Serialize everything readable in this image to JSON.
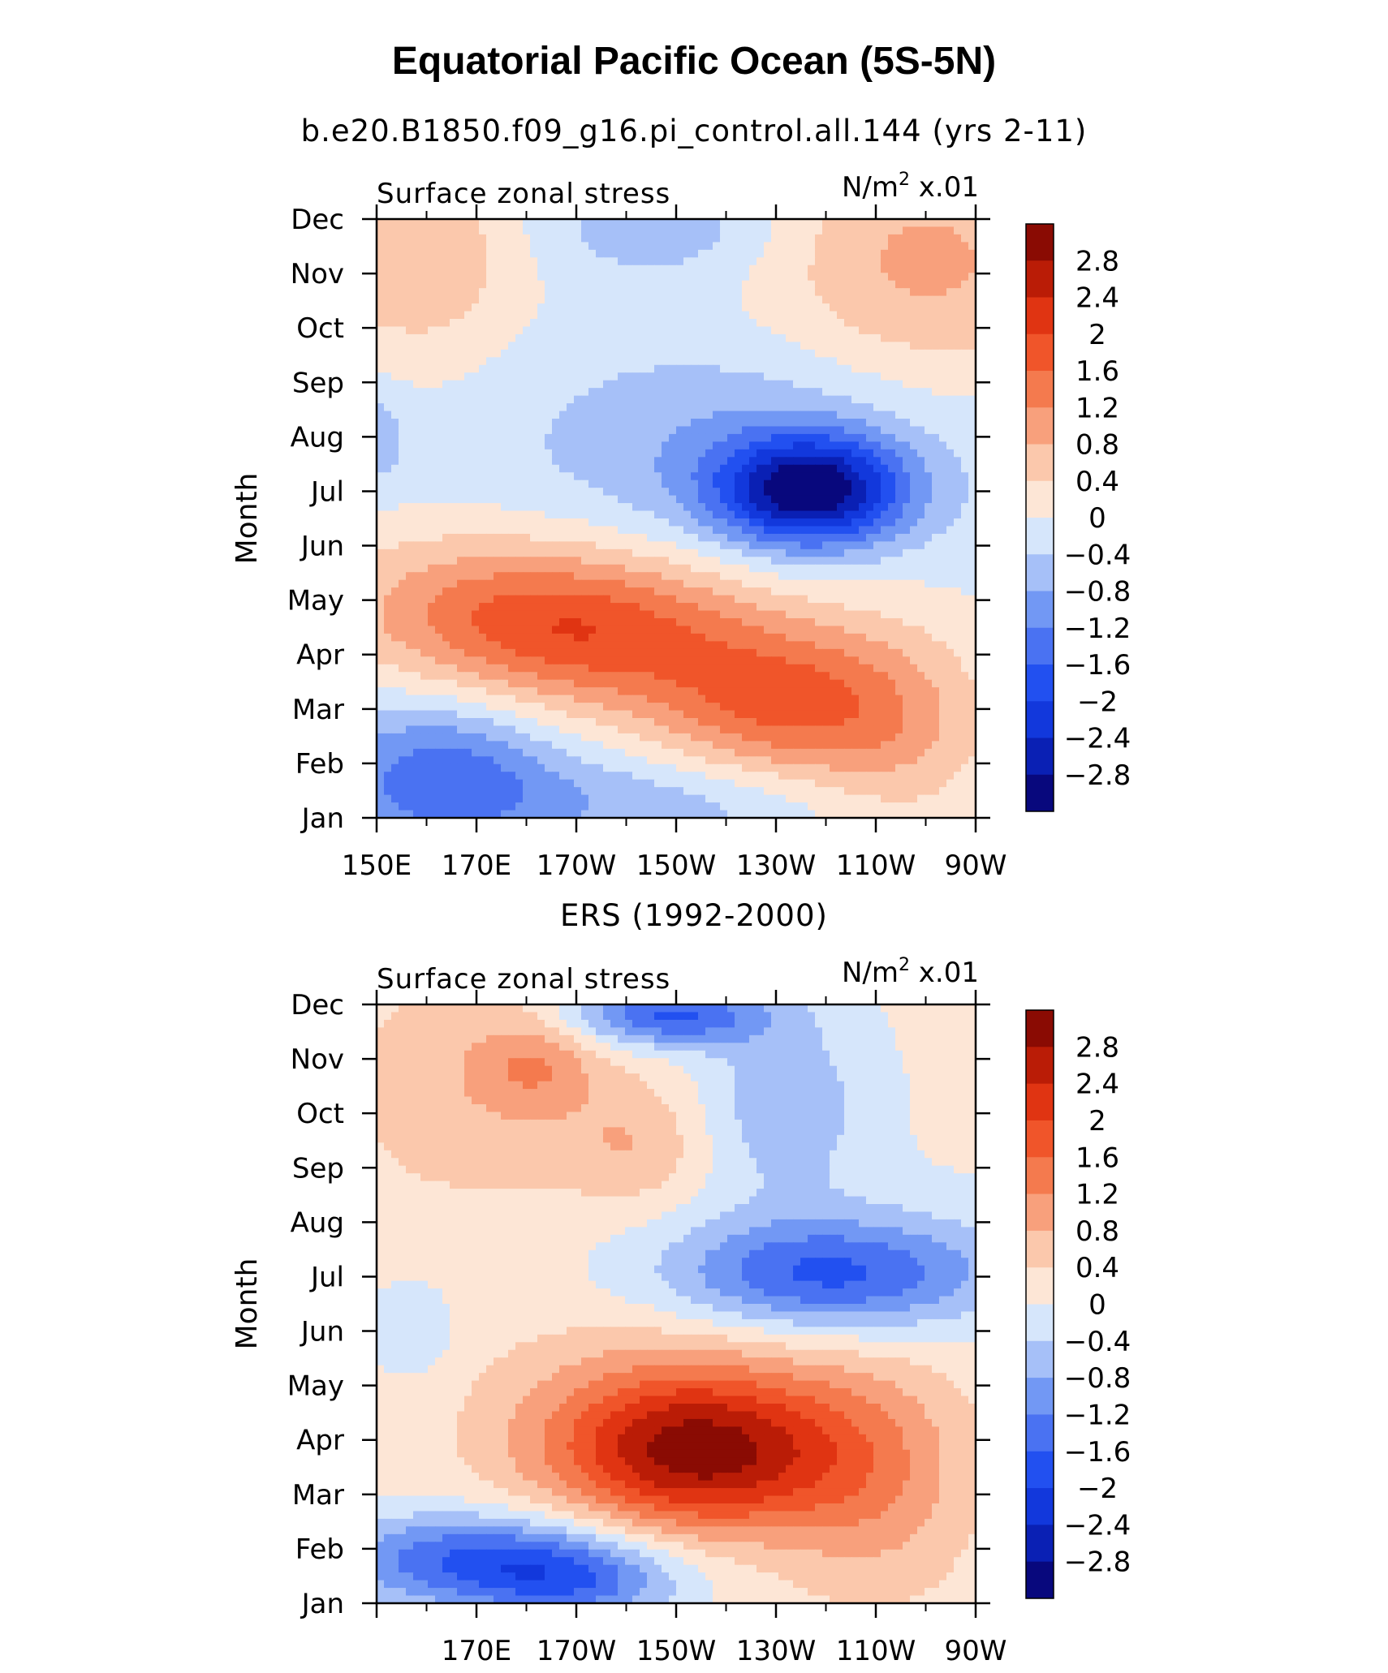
{
  "figure": {
    "title": "Equatorial Pacific Ocean (5S-5N)"
  },
  "chart_data": [
    {
      "type": "heatmap",
      "title": "b.e20.B1850.f09_g16.pi_control.all.144 (yrs 2-11)",
      "left_string": "Surface zonal stress",
      "units": "N/m",
      "units_sup": "2",
      "units_scale": " x.01",
      "xlabel": "",
      "ylabel": "Month",
      "x_tick_labels": [
        "150E",
        "170E",
        "170W",
        "150W",
        "130W",
        "110W",
        "90W"
      ],
      "x_range": [
        150,
        270
      ],
      "y_tick_labels": [
        "Jan",
        "Feb",
        "Mar",
        "Apr",
        "May",
        "Jun",
        "Jul",
        "Aug",
        "Sep",
        "Oct",
        "Nov",
        "Dec"
      ],
      "y_range": [
        1,
        12
      ],
      "colorbar_labels": [
        "2.8",
        "2.4",
        "2",
        "1.6",
        "1.2",
        "0.8",
        "0.4",
        "0",
        "-0.4",
        "-0.8",
        "-1.2",
        "-1.6",
        "-2",
        "-2.4",
        "-2.8"
      ],
      "blobs": [
        {
          "x": 158,
          "y": 11.3,
          "sx": 14,
          "sy": 1.3,
          "a": 0.9
        },
        {
          "x": 260,
          "y": 11.2,
          "sx": 22,
          "sy": 1.6,
          "a": 1.0
        },
        {
          "x": 207,
          "y": 11.8,
          "sx": 16,
          "sy": 0.6,
          "a": -0.6
        },
        {
          "x": 237,
          "y": 7.0,
          "sx": 13,
          "sy": 0.7,
          "a": -2.8
        },
        {
          "x": 222,
          "y": 7.8,
          "sx": 30,
          "sy": 1.3,
          "a": -0.7
        },
        {
          "x": 150,
          "y": 8.0,
          "sx": 4,
          "sy": 0.6,
          "a": -0.6
        },
        {
          "x": 193,
          "y": 4.4,
          "sx": 24,
          "sy": 1.0,
          "a": 1.8
        },
        {
          "x": 231,
          "y": 3.1,
          "sx": 18,
          "sy": 1.0,
          "a": 1.6
        },
        {
          "x": 165,
          "y": 5.0,
          "sx": 22,
          "sy": 1.0,
          "a": 0.7
        },
        {
          "x": 255,
          "y": 2.5,
          "sx": 14,
          "sy": 1.5,
          "a": 0.7
        },
        {
          "x": 163,
          "y": 1.8,
          "sx": 16,
          "sy": 1.0,
          "a": -1.3
        },
        {
          "x": 205,
          "y": 1.3,
          "sx": 30,
          "sy": 0.6,
          "a": -0.6
        }
      ],
      "base": -0.1
    },
    {
      "type": "heatmap",
      "title": "ERS (1992-2000)",
      "left_string": "Surface zonal stress",
      "units": "N/m",
      "units_sup": "2",
      "units_scale": " x.01",
      "xlabel": "",
      "ylabel": "Month",
      "x_tick_labels": [
        "170E",
        "170W",
        "150W",
        "130W",
        "110W",
        "90W"
      ],
      "x_range": [
        150,
        270
      ],
      "y_tick_labels": [
        "Jan",
        "Feb",
        "Mar",
        "Apr",
        "May",
        "Jun",
        "Jul",
        "Aug",
        "Sep",
        "Oct",
        "Nov",
        "Dec"
      ],
      "y_range": [
        1,
        12
      ],
      "colorbar_labels": [
        "2.8",
        "2.4",
        "2",
        "1.6",
        "1.2",
        "0.8",
        "0.4",
        "0",
        "-0.4",
        "-0.8",
        "-1.2",
        "-1.6",
        "-2",
        "-2.4",
        "-2.8"
      ],
      "blobs": [
        {
          "x": 170,
          "y": 10.5,
          "sx": 20,
          "sy": 1.6,
          "a": 0.6
        },
        {
          "x": 182,
          "y": 10.9,
          "sx": 8,
          "sy": 0.6,
          "a": 0.7
        },
        {
          "x": 202,
          "y": 9.4,
          "sx": 10,
          "sy": 0.8,
          "a": 0.6
        },
        {
          "x": 208,
          "y": 11.8,
          "sx": 14,
          "sy": 0.4,
          "a": -1.8
        },
        {
          "x": 232,
          "y": 10.2,
          "sx": 12,
          "sy": 1.2,
          "a": -0.8
        },
        {
          "x": 240,
          "y": 7.0,
          "sx": 22,
          "sy": 0.7,
          "a": -1.5
        },
        {
          "x": 245,
          "y": 7.3,
          "sx": 30,
          "sy": 1.0,
          "a": -0.4
        },
        {
          "x": 157,
          "y": 6.0,
          "sx": 6,
          "sy": 0.6,
          "a": -0.5
        },
        {
          "x": 215,
          "y": 3.7,
          "sx": 20,
          "sy": 1.0,
          "a": 2.2
        },
        {
          "x": 210,
          "y": 4.4,
          "sx": 26,
          "sy": 1.3,
          "a": 0.9
        },
        {
          "x": 250,
          "y": 3.2,
          "sx": 14,
          "sy": 1.6,
          "a": 0.8
        },
        {
          "x": 172,
          "y": 1.8,
          "sx": 22,
          "sy": 0.6,
          "a": -1.8
        },
        {
          "x": 190,
          "y": 1.3,
          "sx": 14,
          "sy": 0.5,
          "a": -1.0
        }
      ],
      "base": 0.1
    }
  ]
}
